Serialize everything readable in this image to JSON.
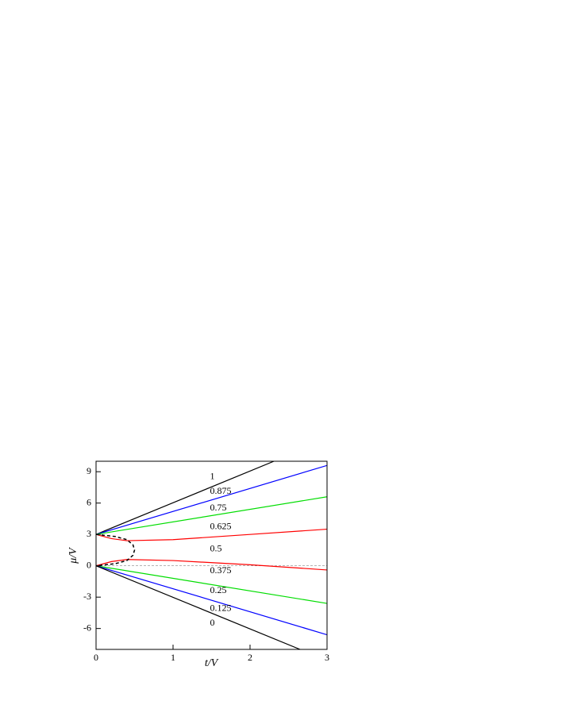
{
  "chart_data": {
    "type": "line",
    "xlabel": "t/V",
    "ylabel": "μ/V",
    "xlim": [
      0,
      3
    ],
    "ylim": [
      -8,
      10
    ],
    "xticks": [
      0,
      1,
      2,
      3
    ],
    "yticks": [
      -6,
      -3,
      0,
      3,
      6,
      9
    ],
    "annotations": [
      "1",
      "0.875",
      "0.75",
      "0.625",
      "0.5",
      "0.375",
      "0.25",
      "0.125",
      "0"
    ],
    "series": [
      {
        "color": "#000000",
        "x": [
          0,
          2.31
        ],
        "values": [
          3,
          10
        ]
      },
      {
        "color": "#0000ff",
        "x": [
          0,
          3
        ],
        "values": [
          3,
          9.6
        ]
      },
      {
        "color": "#00dd00",
        "x": [
          0,
          3
        ],
        "values": [
          3,
          6.6
        ]
      },
      {
        "color": "#ff0000",
        "x": [
          0,
          0.2,
          0.4,
          1,
          2,
          3
        ],
        "values": [
          3,
          2.6,
          2.4,
          2.5,
          3,
          3.5
        ]
      },
      {
        "color": "#ff0000",
        "x": [
          0,
          0.2,
          0.4,
          1,
          2,
          3
        ],
        "values": [
          0,
          0.4,
          0.6,
          0.5,
          0.1,
          -0.4
        ]
      },
      {
        "color": "#00dd00",
        "x": [
          0,
          3
        ],
        "values": [
          0,
          -3.6
        ]
      },
      {
        "color": "#0000ff",
        "x": [
          0,
          3
        ],
        "values": [
          0,
          -6.6
        ]
      },
      {
        "color": "#000000",
        "x": [
          0,
          2.65
        ],
        "values": [
          0,
          -8
        ]
      },
      {
        "color": "#000000",
        "dashed": true,
        "x": [
          0,
          0.25,
          0.4,
          0.48,
          0.5,
          0.48,
          0.4,
          0.25,
          0
        ],
        "values": [
          3,
          2.8,
          2.5,
          2,
          1.5,
          1,
          0.5,
          0.2,
          0
        ]
      }
    ]
  }
}
